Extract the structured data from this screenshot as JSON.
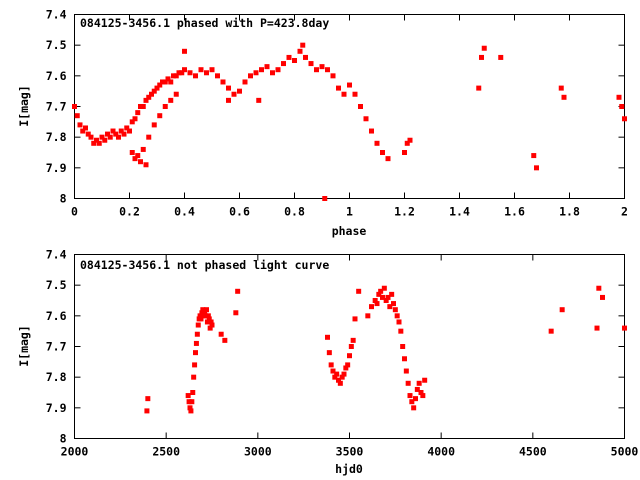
{
  "chart_data": [
    {
      "type": "scatter",
      "title": "084125-3456.1 phased with P=423.8day",
      "xlabel": "phase",
      "ylabel": "I[mag]",
      "xlim": [
        0,
        2
      ],
      "ylim": [
        7.4,
        8
      ],
      "y_inverted": true,
      "xticks": [
        "0",
        "0.2",
        "0.4",
        "0.6",
        "0.8",
        "1",
        "1.2",
        "1.4",
        "1.6",
        "1.8",
        "2"
      ],
      "yticks": [
        "7.4",
        "7.5",
        "7.6",
        "7.7",
        "7.8",
        "7.9",
        "8"
      ],
      "grid": false,
      "marker_color": "#ff0000",
      "series": [
        {
          "x": [
            0.0,
            0.01,
            0.02,
            0.03,
            0.04,
            0.05,
            0.06,
            0.07,
            0.08,
            0.09,
            0.1,
            0.11,
            0.12,
            0.13,
            0.14,
            0.15,
            0.16,
            0.17,
            0.18,
            0.19,
            0.2,
            0.21,
            0.22,
            0.23,
            0.24,
            0.25,
            0.26,
            0.27,
            0.28,
            0.29,
            0.3,
            0.31,
            0.32,
            0.33,
            0.34,
            0.35,
            0.36,
            0.37,
            0.38,
            0.39,
            0.4,
            0.42,
            0.44,
            0.46,
            0.48,
            0.5,
            0.52,
            0.54,
            0.56,
            0.58,
            0.6,
            0.62,
            0.64,
            0.66,
            0.68,
            0.7,
            0.72,
            0.74,
            0.76,
            0.78,
            0.8,
            0.82,
            0.84,
            0.86,
            0.88,
            0.9,
            0.92,
            0.94,
            0.96,
            0.98,
            1.0,
            1.02,
            1.04,
            1.06,
            1.08,
            1.1,
            1.12,
            1.14,
            1.2,
            1.21,
            1.22,
            1.47,
            1.48,
            1.49,
            1.55,
            1.67,
            1.68,
            1.77,
            1.78,
            1.98,
            1.99,
            2.0,
            0.91,
            0.4,
            0.83,
            0.67,
            0.56,
            0.22,
            0.24,
            0.26,
            0.21,
            0.23,
            0.25,
            0.27,
            0.29,
            0.31,
            0.33,
            0.35,
            0.37
          ],
          "y": [
            7.7,
            7.73,
            7.76,
            7.78,
            7.77,
            7.79,
            7.8,
            7.82,
            7.81,
            7.82,
            7.8,
            7.81,
            7.79,
            7.8,
            7.78,
            7.79,
            7.8,
            7.78,
            7.79,
            7.77,
            7.78,
            7.75,
            7.74,
            7.72,
            7.7,
            7.7,
            7.68,
            7.67,
            7.66,
            7.65,
            7.64,
            7.63,
            7.62,
            7.62,
            7.61,
            7.62,
            7.6,
            7.6,
            7.59,
            7.59,
            7.58,
            7.59,
            7.6,
            7.58,
            7.59,
            7.58,
            7.6,
            7.62,
            7.64,
            7.66,
            7.65,
            7.62,
            7.6,
            7.59,
            7.58,
            7.57,
            7.59,
            7.58,
            7.56,
            7.54,
            7.55,
            7.52,
            7.54,
            7.56,
            7.58,
            7.57,
            7.58,
            7.6,
            7.64,
            7.66,
            7.63,
            7.66,
            7.7,
            7.74,
            7.78,
            7.82,
            7.85,
            7.87,
            7.85,
            7.82,
            7.81,
            7.64,
            7.54,
            7.51,
            7.54,
            7.86,
            7.9,
            7.64,
            7.67,
            7.67,
            7.7,
            7.74,
            8.0,
            7.52,
            7.5,
            7.68,
            7.68,
            7.87,
            7.88,
            7.89,
            7.85,
            7.86,
            7.84,
            7.8,
            7.76,
            7.73,
            7.7,
            7.68,
            7.66
          ]
        }
      ]
    },
    {
      "type": "scatter",
      "title": "084125-3456.1 not phased light curve",
      "xlabel": "hjd0",
      "ylabel": "I[mag]",
      "xlim": [
        2000,
        5000
      ],
      "ylim": [
        7.4,
        8
      ],
      "y_inverted": true,
      "xticks": [
        "2000",
        "2500",
        "3000",
        "3500",
        "4000",
        "4500",
        "5000"
      ],
      "yticks": [
        "7.4",
        "7.5",
        "7.6",
        "7.7",
        "7.8",
        "7.9",
        "8"
      ],
      "grid": false,
      "marker_color": "#ff0000",
      "series": [
        {
          "x": [
            2395,
            2400,
            2620,
            2625,
            2630,
            2635,
            2640,
            2645,
            2650,
            2655,
            2660,
            2665,
            2670,
            2675,
            2680,
            2685,
            2690,
            2695,
            2700,
            2705,
            2710,
            2715,
            2720,
            2725,
            2730,
            2735,
            2740,
            2745,
            2750,
            2800,
            2820,
            2880,
            2890,
            3380,
            3390,
            3400,
            3410,
            3420,
            3430,
            3440,
            3450,
            3460,
            3470,
            3480,
            3490,
            3500,
            3510,
            3520,
            3530,
            3550,
            3600,
            3620,
            3640,
            3650,
            3660,
            3670,
            3680,
            3690,
            3700,
            3710,
            3720,
            3730,
            3740,
            3750,
            3760,
            3770,
            3780,
            3790,
            3800,
            3810,
            3820,
            3830,
            3840,
            3850,
            3860,
            3870,
            3880,
            3890,
            3900,
            3910,
            4600,
            4660,
            4850,
            4860,
            4880,
            5000
          ],
          "y": [
            7.91,
            7.87,
            7.86,
            7.88,
            7.9,
            7.91,
            7.88,
            7.85,
            7.8,
            7.76,
            7.72,
            7.69,
            7.66,
            7.63,
            7.61,
            7.6,
            7.61,
            7.59,
            7.58,
            7.6,
            7.59,
            7.6,
            7.58,
            7.62,
            7.6,
            7.61,
            7.64,
            7.62,
            7.63,
            7.66,
            7.68,
            7.59,
            7.52,
            7.67,
            7.72,
            7.76,
            7.78,
            7.8,
            7.79,
            7.81,
            7.82,
            7.8,
            7.79,
            7.77,
            7.76,
            7.73,
            7.7,
            7.68,
            7.61,
            7.52,
            7.6,
            7.57,
            7.55,
            7.56,
            7.53,
            7.52,
            7.54,
            7.51,
            7.55,
            7.54,
            7.57,
            7.53,
            7.56,
            7.58,
            7.6,
            7.62,
            7.65,
            7.7,
            7.74,
            7.78,
            7.82,
            7.86,
            7.88,
            7.9,
            7.87,
            7.84,
            7.82,
            7.85,
            7.86,
            7.81,
            7.65,
            7.58,
            7.64,
            7.51,
            7.54,
            7.64
          ]
        }
      ]
    }
  ]
}
